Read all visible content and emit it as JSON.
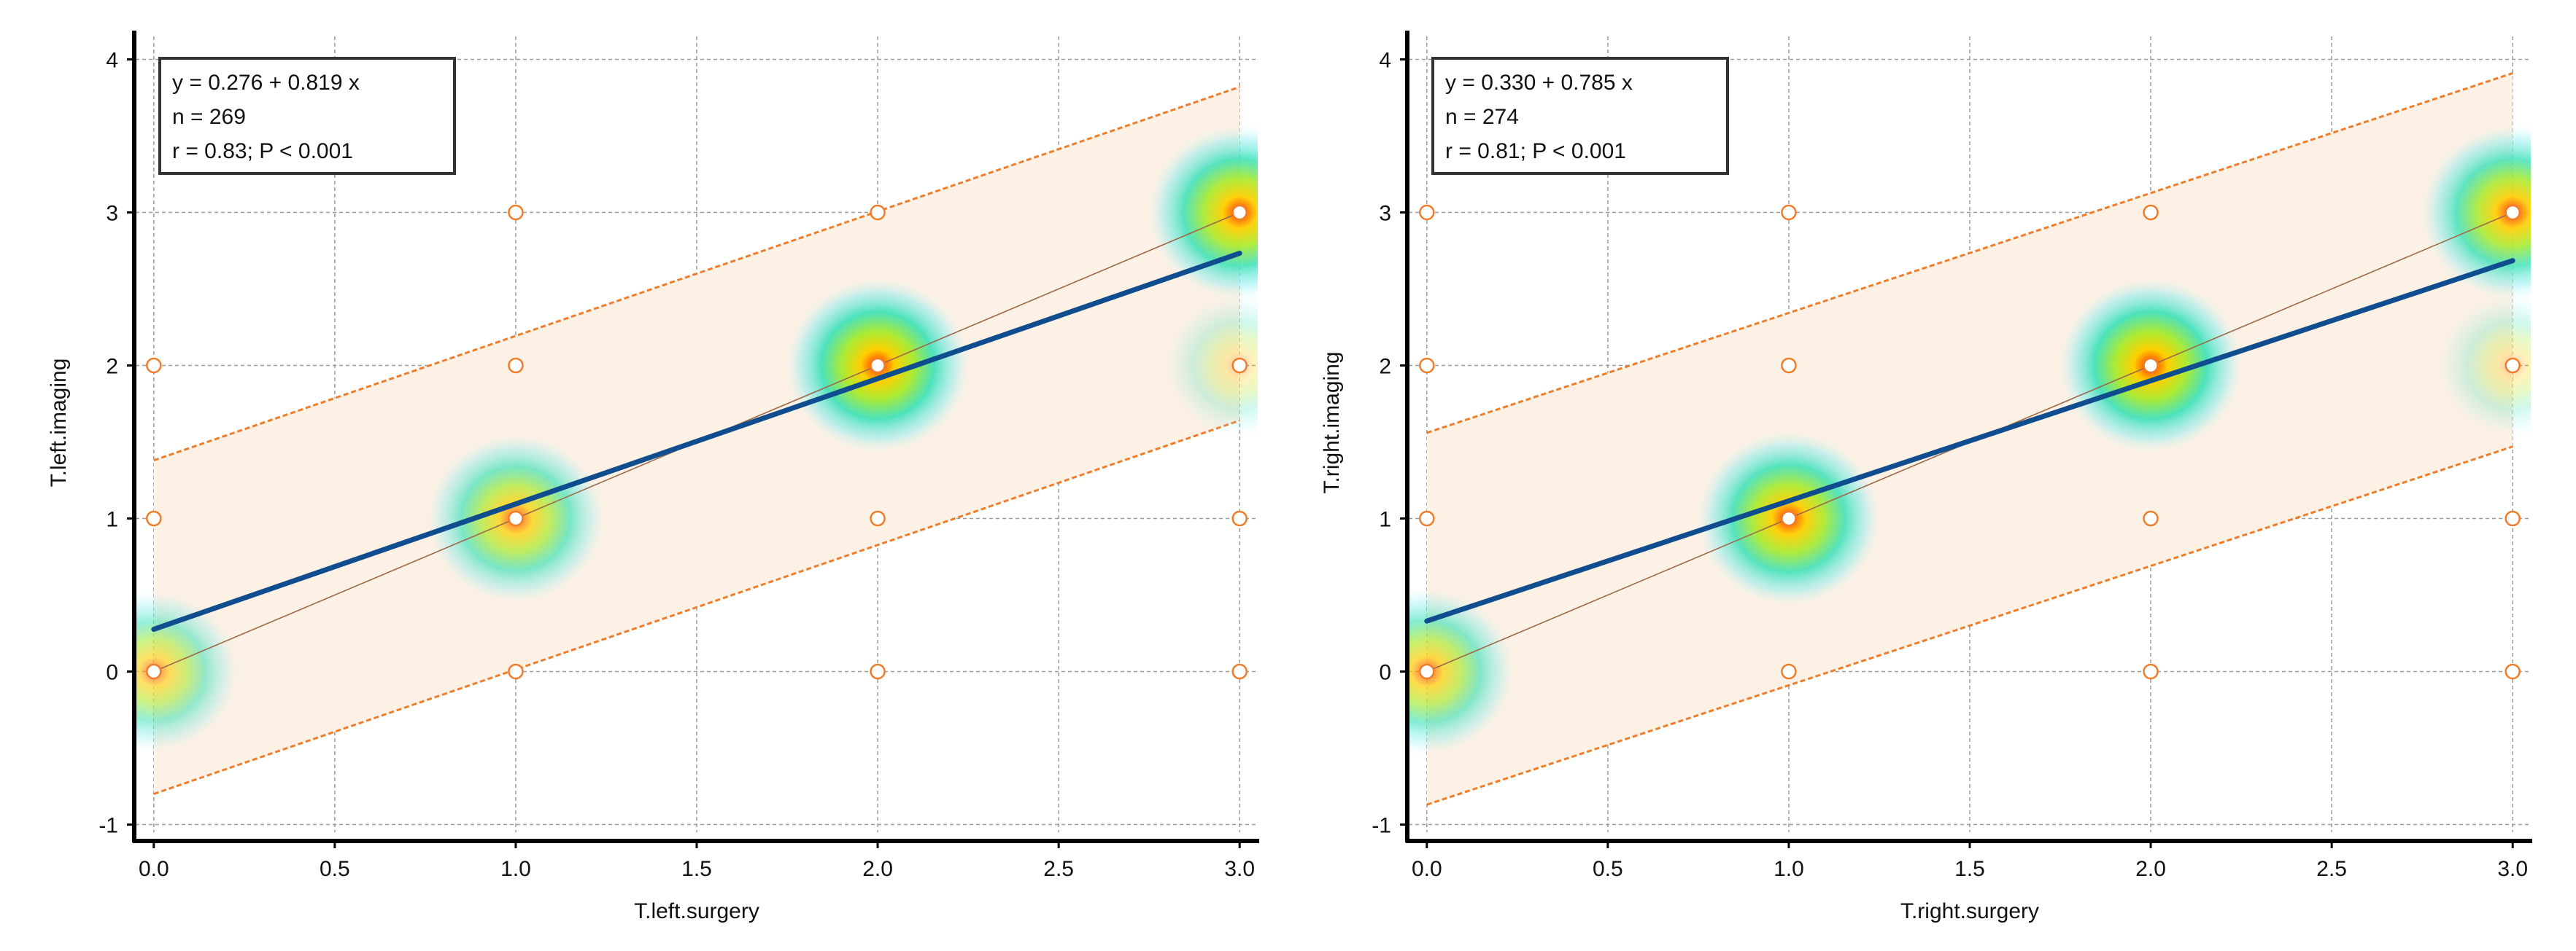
{
  "colors": {
    "band_fill": "#fdf0e4",
    "limit_line": "#f07d2a",
    "regression_line": "#0f4d8f",
    "identity_line": "#9b6a4a",
    "marker_stroke": "#f07d2a",
    "marker_fill": "#ffffff",
    "grid": "#9a9a9a",
    "axis": "#000000"
  },
  "chart_data": [
    {
      "type": "scatter",
      "xlabel": "T.left.surgery",
      "ylabel": "T.left.imaging",
      "xlim": [
        -0.05,
        3.05
      ],
      "ylim": [
        -1.05,
        4.15
      ],
      "xticks": [
        0.0,
        0.5,
        1.0,
        1.5,
        2.0,
        2.5,
        3.0
      ],
      "xtick_labels": [
        "0.0",
        "0.5",
        "1.0",
        "1.5",
        "2.0",
        "2.5",
        "3.0"
      ],
      "yticks": [
        -1,
        0,
        1,
        2,
        3,
        4
      ],
      "ytick_labels": [
        "-1",
        "0",
        "1",
        "2",
        "3",
        "4"
      ],
      "grid": true,
      "legend": "top-left",
      "stats": [
        "y = 0.276 + 0.819 x",
        "n = 269",
        "r = 0.83; P < 0.001"
      ],
      "regression": {
        "intercept": 0.276,
        "slope": 0.819
      },
      "prediction_interval": {
        "lower": [
          [
            0,
            -0.8
          ],
          [
            3,
            1.64
          ]
        ],
        "upper": [
          [
            0,
            1.38
          ],
          [
            3,
            3.82
          ]
        ]
      },
      "identity_line": true,
      "points": [
        [
          0,
          0
        ],
        [
          0,
          1
        ],
        [
          0,
          2
        ],
        [
          1,
          0
        ],
        [
          1,
          1
        ],
        [
          1,
          2
        ],
        [
          1,
          3
        ],
        [
          2,
          0
        ],
        [
          2,
          1
        ],
        [
          2,
          2
        ],
        [
          2,
          3
        ],
        [
          3,
          0
        ],
        [
          3,
          1
        ],
        [
          3,
          2
        ],
        [
          3,
          3
        ]
      ],
      "density": [
        {
          "x": 0,
          "y": 0,
          "w": 0.45
        },
        {
          "x": 1,
          "y": 1,
          "w": 0.6
        },
        {
          "x": 2,
          "y": 2,
          "w": 0.85
        },
        {
          "x": 3,
          "y": 3,
          "w": 0.8
        },
        {
          "x": 3,
          "y": 2,
          "w": 0.12
        }
      ]
    },
    {
      "type": "scatter",
      "xlabel": "T.right.surgery",
      "ylabel": "T.right.imaging",
      "xlim": [
        -0.05,
        3.05
      ],
      "ylim": [
        -1.05,
        4.15
      ],
      "xticks": [
        0.0,
        0.5,
        1.0,
        1.5,
        2.0,
        2.5,
        3.0
      ],
      "xtick_labels": [
        "0.0",
        "0.5",
        "1.0",
        "1.5",
        "2.0",
        "2.5",
        "3.0"
      ],
      "yticks": [
        -1,
        0,
        1,
        2,
        3,
        4
      ],
      "ytick_labels": [
        "-1",
        "0",
        "1",
        "2",
        "3",
        "4"
      ],
      "grid": true,
      "legend": "top-left",
      "stats": [
        "y = 0.330 + 0.785 x",
        "n = 274",
        "r = 0.81; P < 0.001"
      ],
      "regression": {
        "intercept": 0.33,
        "slope": 0.785
      },
      "prediction_interval": {
        "lower": [
          [
            0,
            -0.87
          ],
          [
            3,
            1.47
          ]
        ],
        "upper": [
          [
            0,
            1.56
          ],
          [
            3,
            3.91
          ]
        ]
      },
      "identity_line": true,
      "points": [
        [
          0,
          0
        ],
        [
          0,
          1
        ],
        [
          0,
          2
        ],
        [
          0,
          3
        ],
        [
          1,
          0
        ],
        [
          1,
          1
        ],
        [
          1,
          2
        ],
        [
          1,
          3
        ],
        [
          2,
          0
        ],
        [
          2,
          1
        ],
        [
          2,
          2
        ],
        [
          2,
          3
        ],
        [
          3,
          0
        ],
        [
          3,
          1
        ],
        [
          3,
          2
        ],
        [
          3,
          3
        ]
      ],
      "density": [
        {
          "x": 0,
          "y": 0,
          "w": 0.55
        },
        {
          "x": 1,
          "y": 1,
          "w": 0.8
        },
        {
          "x": 2,
          "y": 2,
          "w": 0.9
        },
        {
          "x": 3,
          "y": 3,
          "w": 0.75
        },
        {
          "x": 3,
          "y": 2,
          "w": 0.12
        }
      ]
    }
  ]
}
